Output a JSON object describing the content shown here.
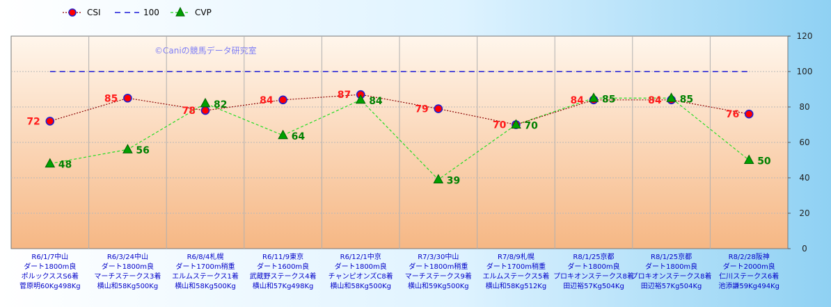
{
  "chart_data": {
    "type": "line",
    "watermark": "©Caniの競馬データ研究室",
    "ylim": [
      0,
      120
    ],
    "yticks": [
      "0",
      "20",
      "40",
      "60",
      "80",
      "100",
      "120"
    ],
    "categories": [
      [
        "R6/1/7中山",
        "ダート1800m良",
        "ポルックススS6着",
        "菅原明60Kg498Kg"
      ],
      [
        "R6/3/24中山",
        "ダート1800m良",
        "マーチステークス3着",
        "横山和58Kg500Kg"
      ],
      [
        "R6/8/4札幌",
        "ダート1700m稍重",
        "エルムステークス1着",
        "横山和58Kg500Kg"
      ],
      [
        "R6/11/9東京",
        "ダート1600m良",
        "武蔵野ステークス4着",
        "横山和57Kg498Kg"
      ],
      [
        "R6/12/1中京",
        "ダート1800m良",
        "チャンピオンズC8着",
        "横山和58Kg500Kg"
      ],
      [
        "R7/3/30中山",
        "ダート1800m稍重",
        "マーチステークス9着",
        "横山和59Kg500Kg"
      ],
      [
        "R7/8/9札幌",
        "ダート1700m稍重",
        "エルムステークス5着",
        "横山和58Kg512Kg"
      ],
      [
        "R8/1/25京都",
        "ダート1800m良",
        "プロキオンステークス8着",
        "田辺裕57Kg504Kg"
      ],
      [
        "R8/1/25京都",
        "ダート1800m良",
        "プロキオンステークス8着",
        "田辺裕57Kg504Kg"
      ],
      [
        "R8/2/28阪神",
        "ダート2000m良",
        "仁川ステークス6着",
        "池添謙59Kg494Kg"
      ]
    ],
    "series": [
      {
        "name": "CSI",
        "color": "#8b0000",
        "marker_fill": "#ff0000",
        "marker_edge": "#1f1fd0",
        "marker": "circle",
        "line": "dotted",
        "values": [
          72,
          85,
          78,
          84,
          87,
          79,
          70,
          84,
          84,
          76
        ]
      },
      {
        "name": "100",
        "color": "#1a1ad8",
        "marker": "none",
        "line": "dashed",
        "values": [
          100,
          100,
          100,
          100,
          100,
          100,
          100,
          100,
          100,
          100
        ]
      },
      {
        "name": "CVP",
        "color": "#22dd22",
        "marker_fill": "#00a000",
        "marker": "triangle",
        "line": "dashed",
        "values": [
          48,
          56,
          82,
          64,
          84,
          39,
          70,
          85,
          85,
          50
        ]
      }
    ],
    "legend": "top-left",
    "grid": true
  }
}
